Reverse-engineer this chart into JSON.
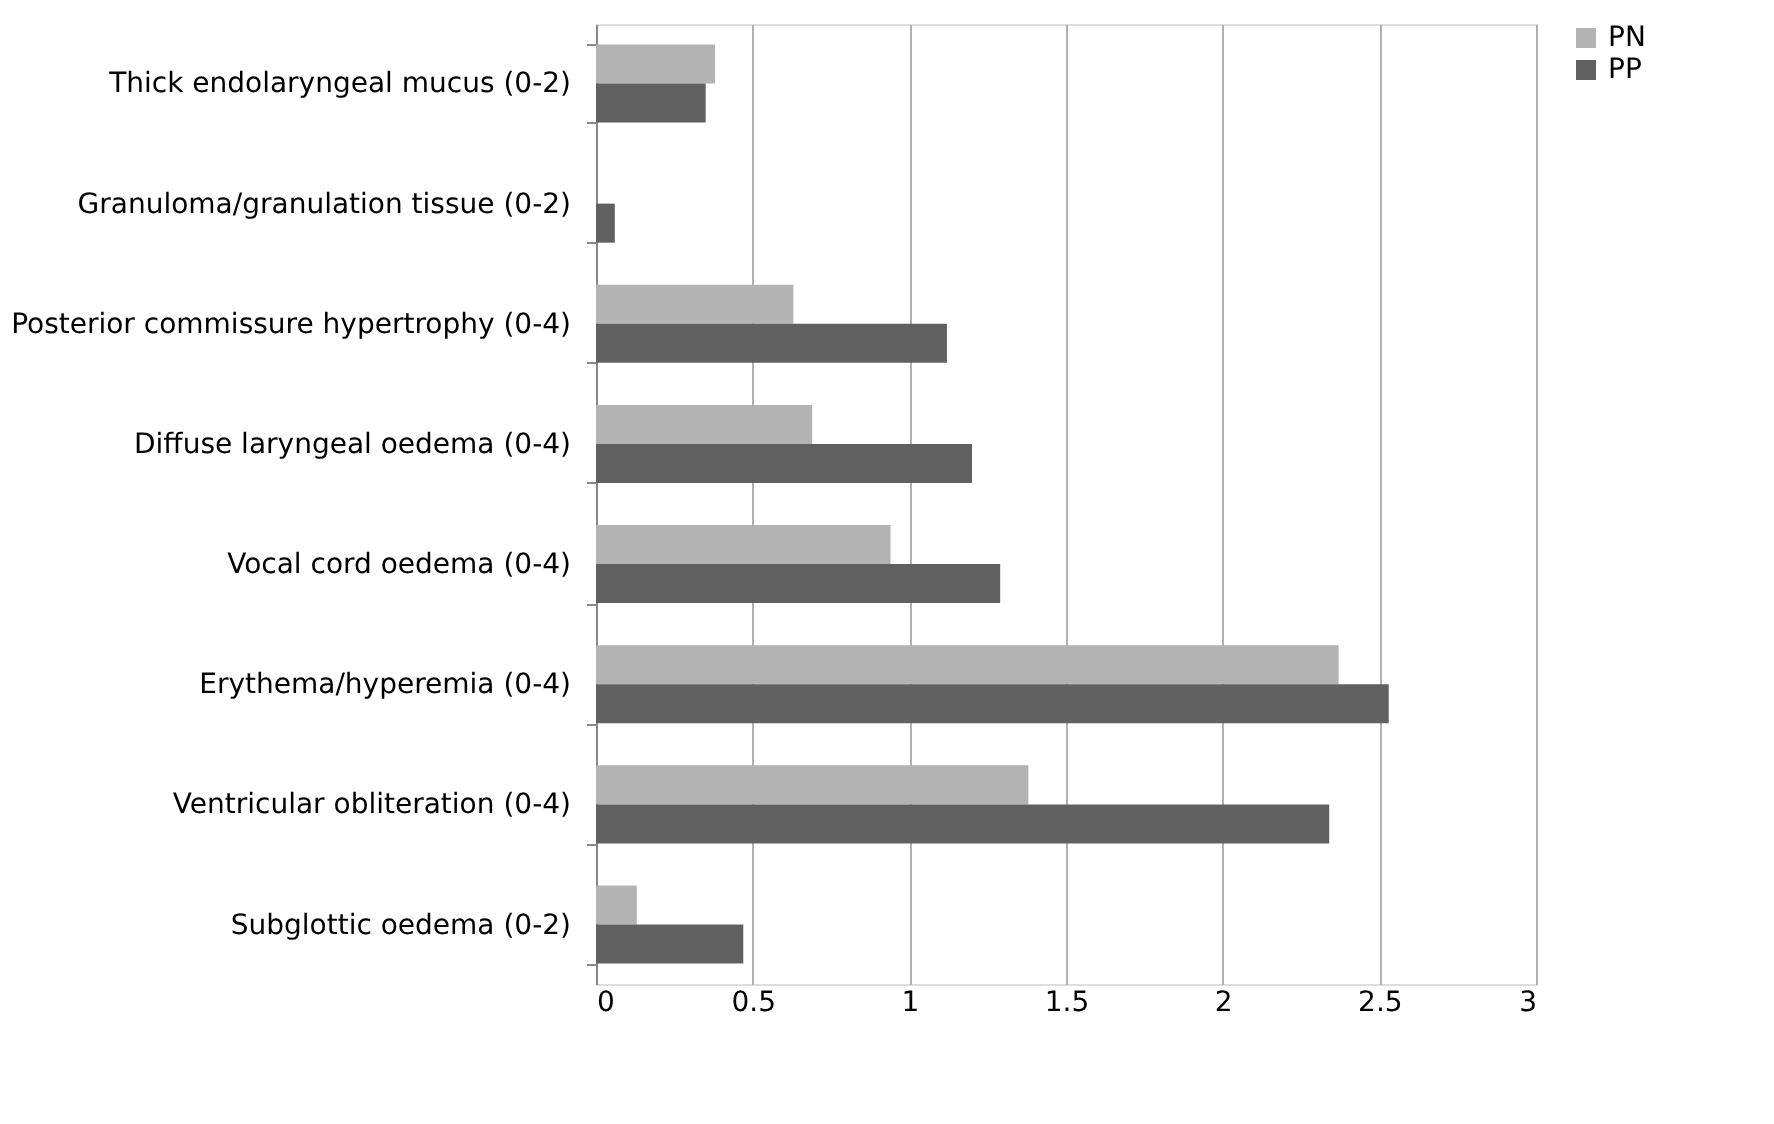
{
  "chart_data": {
    "type": "bar",
    "orientation": "horizontal",
    "categories": [
      "Thick endolaryngeal mucus (0-2)",
      "Granuloma/granulation tissue (0-2)",
      "Posterior commissure hypertrophy (0-4)",
      "Diffuse laryngeal oedema (0-4)",
      "Vocal cord oedema (0-4)",
      "Erythema/hyperemia (0-4)",
      "Ventricular obliteration (0-4)",
      "Subglottic oedema (0-2)"
    ],
    "series": [
      {
        "name": "PN",
        "color": "#b3b3b3",
        "values": [
          0.38,
          0,
          0.63,
          0.69,
          0.94,
          2.37,
          1.38,
          0.13
        ]
      },
      {
        "name": "PP",
        "color": "#606060",
        "values": [
          0.35,
          0.06,
          1.12,
          1.2,
          1.29,
          2.53,
          2.34,
          0.47
        ]
      }
    ],
    "xlim": [
      0,
      3
    ],
    "xticks": [
      0,
      0.5,
      1,
      1.5,
      2,
      2.5,
      3
    ],
    "grid": "x",
    "legend": "right"
  }
}
